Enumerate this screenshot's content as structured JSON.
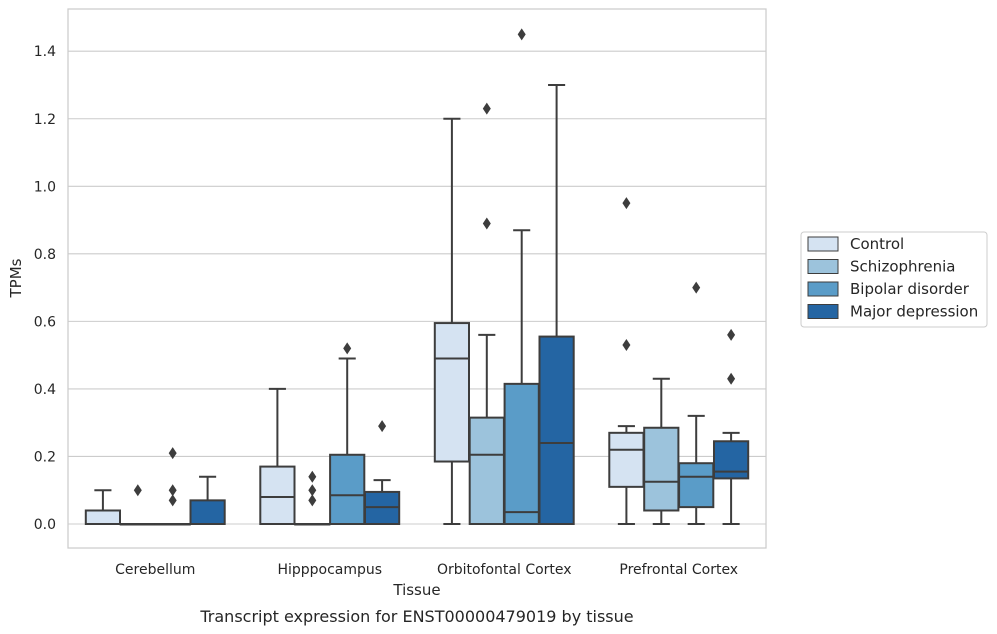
{
  "chart_data": {
    "type": "boxplot",
    "xlabel": "Tissue",
    "ylabel": "TPMs",
    "caption": "Transcript expression for ENST00000479019 by tissue",
    "ylim": [
      -0.07,
      1.52
    ],
    "yticks": [
      0.0,
      0.2,
      0.4,
      0.6,
      0.8,
      1.0,
      1.2,
      1.4
    ],
    "ytick_labels": [
      "0.0",
      "0.2",
      "0.4",
      "0.6",
      "0.8",
      "1.0",
      "1.2",
      "1.4"
    ],
    "grid": "horizontal",
    "legend_position": "right",
    "categories": [
      "Cerebellum",
      "Hipppocampus",
      "Orbitofontal Cortex",
      "Prefrontal Cortex"
    ],
    "series": [
      {
        "name": "Control",
        "color": "#d5e3f2",
        "boxes": [
          {
            "whislo": 0.0,
            "q1": 0.0,
            "med": 0.0,
            "q3": 0.04,
            "whishi": 0.1,
            "fliers": []
          },
          {
            "whislo": 0.0,
            "q1": 0.0,
            "med": 0.08,
            "q3": 0.17,
            "whishi": 0.4,
            "fliers": []
          },
          {
            "whislo": 0.0,
            "q1": 0.185,
            "med": 0.49,
            "q3": 0.595,
            "whishi": 1.2,
            "fliers": []
          },
          {
            "whislo": 0.0,
            "q1": 0.11,
            "med": 0.22,
            "q3": 0.27,
            "whishi": 0.29,
            "fliers": [
              0.53,
              0.95
            ]
          }
        ]
      },
      {
        "name": "Schizophrenia",
        "color": "#9cc3dc",
        "boxes": [
          {
            "whislo": 0.0,
            "q1": 0.0,
            "med": 0.0,
            "q3": 0.0,
            "whishi": 0.0,
            "fliers": [
              0.1
            ]
          },
          {
            "whislo": 0.0,
            "q1": 0.0,
            "med": 0.0,
            "q3": 0.0,
            "whishi": 0.0,
            "fliers": [
              0.07,
              0.1,
              0.14
            ]
          },
          {
            "whislo": 0.0,
            "q1": 0.0,
            "med": 0.205,
            "q3": 0.315,
            "whishi": 0.56,
            "fliers": [
              0.89,
              1.23
            ]
          },
          {
            "whislo": 0.0,
            "q1": 0.04,
            "med": 0.125,
            "q3": 0.285,
            "whishi": 0.43,
            "fliers": []
          }
        ]
      },
      {
        "name": "Bipolar disorder",
        "color": "#5a9cc8",
        "boxes": [
          {
            "whislo": 0.0,
            "q1": 0.0,
            "med": 0.0,
            "q3": 0.0,
            "whishi": 0.0,
            "fliers": [
              0.07,
              0.1,
              0.21
            ]
          },
          {
            "whislo": 0.0,
            "q1": 0.0,
            "med": 0.085,
            "q3": 0.205,
            "whishi": 0.49,
            "fliers": [
              0.52
            ]
          },
          {
            "whislo": 0.0,
            "q1": 0.0,
            "med": 0.035,
            "q3": 0.415,
            "whishi": 0.87,
            "fliers": [
              1.45
            ]
          },
          {
            "whislo": 0.0,
            "q1": 0.05,
            "med": 0.14,
            "q3": 0.18,
            "whishi": 0.32,
            "fliers": [
              0.7
            ]
          }
        ]
      },
      {
        "name": "Major depression",
        "color": "#2465a3",
        "boxes": [
          {
            "whislo": 0.0,
            "q1": 0.0,
            "med": 0.0,
            "q3": 0.07,
            "whishi": 0.14,
            "fliers": []
          },
          {
            "whislo": 0.0,
            "q1": 0.0,
            "med": 0.05,
            "q3": 0.095,
            "whishi": 0.13,
            "fliers": [
              0.29
            ]
          },
          {
            "whislo": 0.0,
            "q1": 0.0,
            "med": 0.24,
            "q3": 0.555,
            "whishi": 1.3,
            "fliers": []
          },
          {
            "whislo": 0.0,
            "q1": 0.135,
            "med": 0.155,
            "q3": 0.245,
            "whishi": 0.27,
            "fliers": [
              0.43,
              0.56
            ]
          }
        ]
      }
    ]
  }
}
